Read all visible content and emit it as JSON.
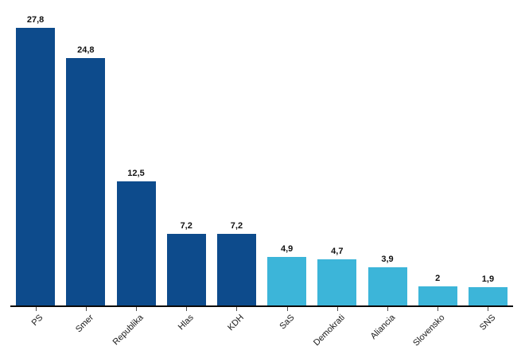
{
  "chart_data": {
    "type": "bar",
    "title": "",
    "xlabel": "",
    "ylabel": "",
    "ylim": [
      0,
      27.8
    ],
    "grid": false,
    "legend": false,
    "categories": [
      "PS",
      "Smer",
      "Republika",
      "Hlas",
      "KDH",
      "SaS",
      "Demokrati",
      "Aliancia",
      "Slovensko",
      "SNS"
    ],
    "values": [
      27.8,
      24.8,
      12.5,
      7.2,
      7.2,
      4.9,
      4.7,
      3.9,
      2,
      1.9
    ],
    "value_labels": [
      "27,8",
      "24,8",
      "12,5",
      "7,2",
      "7,2",
      "4,9",
      "4,7",
      "3,9",
      "2",
      "1,9"
    ],
    "bar_color_groups": [
      "dark",
      "dark",
      "dark",
      "dark",
      "dark",
      "light",
      "light",
      "light",
      "light",
      "light"
    ]
  },
  "colors": {
    "dark_bar": "#0d4b8c",
    "light_bar": "#3cb5d9",
    "axis": "#0a0a0a",
    "tick": "#4d4d4d",
    "label_text": "#111111"
  }
}
